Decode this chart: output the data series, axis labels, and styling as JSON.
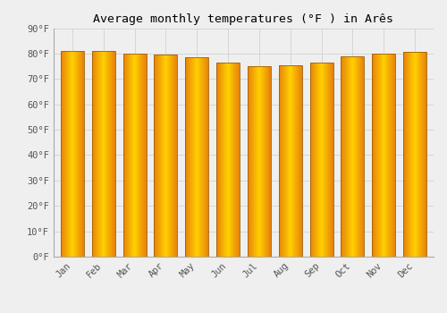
{
  "title": "Average monthly temperatures (°F ) in Arês",
  "months": [
    "Jan",
    "Feb",
    "Mar",
    "Apr",
    "May",
    "Jun",
    "Jul",
    "Aug",
    "Sep",
    "Oct",
    "Nov",
    "Dec"
  ],
  "values": [
    81,
    81,
    80,
    79.5,
    78.5,
    76.5,
    75,
    75.5,
    76.5,
    79,
    80,
    80.5
  ],
  "ylim": [
    0,
    90
  ],
  "yticks": [
    0,
    10,
    20,
    30,
    40,
    50,
    60,
    70,
    80,
    90
  ],
  "bar_color_left": "#E8820A",
  "bar_color_center": "#FFD000",
  "bar_color_right": "#E8820A",
  "bar_edge_color": "#A06000",
  "background_color": "#efefef",
  "grid_color": "#cccccc",
  "title_fontsize": 9.5,
  "tick_fontsize": 7.5,
  "font_family": "monospace"
}
